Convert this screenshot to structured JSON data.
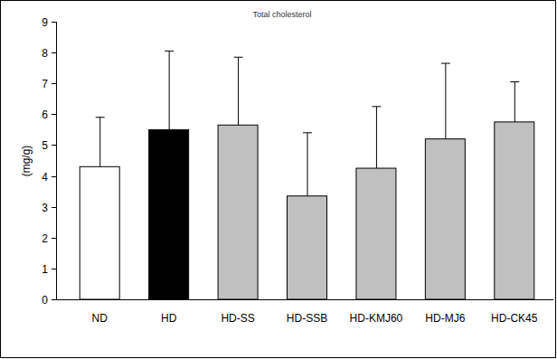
{
  "chart_data": {
    "type": "bar",
    "title": "Total cholesterol",
    "y_label": "(mg/g)",
    "categories": [
      "ND",
      "HD",
      "HD-SS",
      "HD-SSB",
      "HD-KMJ60",
      "HD-MJ6",
      "HD-CK45"
    ],
    "values": [
      4.3,
      5.5,
      5.65,
      3.35,
      4.25,
      5.2,
      5.75
    ],
    "errors": [
      1.6,
      2.55,
      2.2,
      2.05,
      2.0,
      2.45,
      1.3
    ],
    "colors": [
      "#ffffff",
      "#000000",
      "#c0c0c0",
      "#c0c0c0",
      "#c0c0c0",
      "#c0c0c0",
      "#c0c0c0"
    ],
    "ylim": [
      0,
      9
    ],
    "yticks": [
      0,
      1,
      2,
      3,
      4,
      5,
      6,
      7,
      8,
      9
    ],
    "grid": false
  }
}
